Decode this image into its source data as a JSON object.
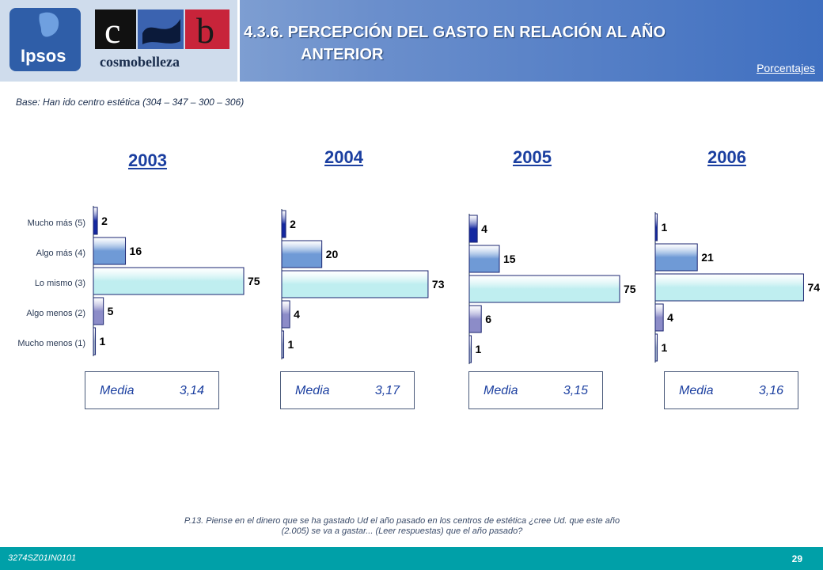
{
  "header": {
    "brand_left": "Ipsos",
    "brand_right": "cosmobelleza",
    "title_line1": "4.3.6. PERCEPCIÓN DEL GASTO EN RELACIÓN AL AÑO",
    "title_line2": "ANTERIOR",
    "units_label": "Porcentajes"
  },
  "base_note": "Base: Han ido centro estética   (304 – 347 – 300 – 306)",
  "colors": {
    "header_blue": "#3f6fc0",
    "year_blue": "#1b3fa0",
    "footer_teal": "#00a0a8",
    "bar_mucho_mas": "#1428a0",
    "bar_algo_mas": "#6f9ad6",
    "bar_lo_mismo": "#bfeef0",
    "bar_algo_menos": "#8c8cc8",
    "bar_mucho_menos": "#9fb0c8"
  },
  "chart_data": {
    "type": "bar",
    "orientation": "horizontal",
    "categories": [
      "Mucho más (5)",
      "Algo más (4)",
      "Lo mismo (3)",
      "Algo menos (2)",
      "Mucho menos (1)"
    ],
    "series": [
      {
        "name": "2003",
        "values": [
          2,
          16,
          75,
          5,
          1
        ],
        "media": "3,14"
      },
      {
        "name": "2004",
        "values": [
          2,
          20,
          73,
          4,
          1
        ],
        "media": "3,17"
      },
      {
        "name": "2005",
        "values": [
          4,
          15,
          75,
          6,
          1
        ],
        "media": "3,15"
      },
      {
        "name": "2006",
        "values": [
          1,
          21,
          74,
          4,
          1
        ],
        "media": "3,16"
      }
    ],
    "media_label": "Media",
    "xlim": [
      0,
      75
    ]
  },
  "question": "P.13. Piense en el dinero que se ha gastado Ud el año pasado en los centros de estética ¿cree Ud. que este año (2.005) se va a gastar... (Leer respuestas) que el año pasado?",
  "footer": {
    "code": "3274SZ01IN0101",
    "page": "29"
  }
}
